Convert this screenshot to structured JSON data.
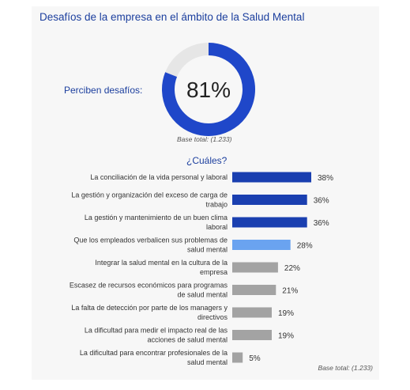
{
  "title": "Desafíos de la empresa en el ámbito de la Salud Mental",
  "donut": {
    "label": "Perciben desafíos:",
    "value": 81,
    "value_text": "81%",
    "base": "Base total: (1.233)",
    "color": "#1f47c9",
    "track_color": "#e6e6e6"
  },
  "bars_heading": "¿Cuáles?",
  "base_bottom": "Base total: (1.233)",
  "colors": {
    "dark_blue": "#1a3fb0",
    "light_blue": "#6aa3f0",
    "gray": "#a3a3a3"
  },
  "chart_data": {
    "type": "bar",
    "orientation": "horizontal",
    "title": "¿Cuáles?",
    "categories": [
      [
        "La conciliación de la vida personal y laboral"
      ],
      [
        "La gestión y organización del exceso de carga de",
        "trabajo"
      ],
      [
        "La gestión y mantenimiento de un buen clima",
        "laboral"
      ],
      [
        "Que los empleados verbalicen sus problemas de",
        "salud mental"
      ],
      [
        "Integrar la salud mental en la cultura de la",
        "empresa"
      ],
      [
        "Escasez de recursos económicos para programas",
        "de salud mental"
      ],
      [
        "La falta de detección por parte de los managers y",
        "directivos"
      ],
      [
        "La dificultad para medir el impacto real de las",
        "acciones de salud mental"
      ],
      [
        "La dificultad para encontrar profesionales de la",
        "salud mental"
      ]
    ],
    "values": [
      38,
      36,
      36,
      28,
      22,
      21,
      19,
      19,
      5
    ],
    "value_labels": [
      "38%",
      "36%",
      "36%",
      "28%",
      "22%",
      "21%",
      "19%",
      "19%",
      "5%"
    ],
    "bar_colors": [
      "dark_blue",
      "dark_blue",
      "dark_blue",
      "light_blue",
      "gray",
      "gray",
      "gray",
      "gray",
      "gray"
    ],
    "xlim": [
      0,
      38
    ]
  }
}
